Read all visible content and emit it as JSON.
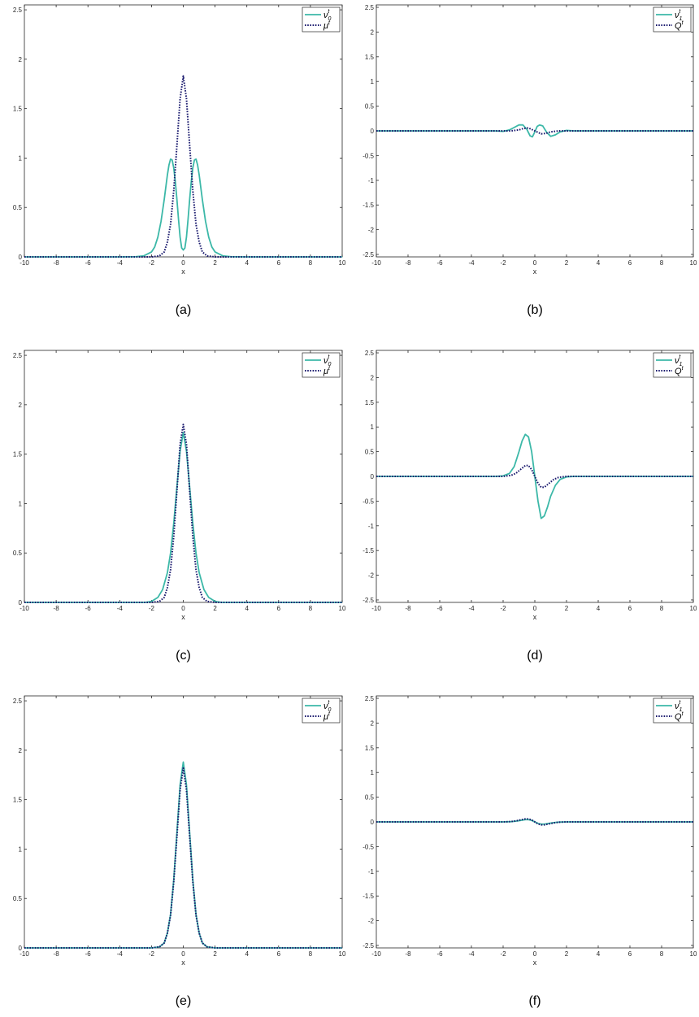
{
  "colors": {
    "teal": "#3cb8a8",
    "navy": "#1a1a6e",
    "axis": "#262626"
  },
  "chart_data": [
    {
      "type": "line",
      "caption": "(a)",
      "xlabel": "x",
      "xlim": [
        -10,
        10
      ],
      "ylim": [
        0,
        2.55
      ],
      "xticks": [
        "-10",
        "-8",
        "-6",
        "-4",
        "-2",
        "0",
        "2",
        "4",
        "6",
        "8",
        "10"
      ],
      "yticks": [
        "0",
        "0.5",
        "1",
        "1.5",
        "2",
        "2.5"
      ],
      "legend": "top-right",
      "grid": false,
      "series": [
        {
          "name": "ν0t",
          "style": "solid",
          "color": "#3cb8a8",
          "x": [
            -10,
            -4,
            -3,
            -2.5,
            -2,
            -1.8,
            -1.6,
            -1.4,
            -1.2,
            -1,
            -0.9,
            -0.8,
            -0.7,
            -0.6,
            -0.5,
            -0.4,
            -0.3,
            -0.2,
            -0.1,
            0,
            0.1,
            0.2,
            0.3,
            0.4,
            0.5,
            0.6,
            0.7,
            0.8,
            0.9,
            1,
            1.2,
            1.4,
            1.6,
            1.8,
            2,
            2.5,
            3,
            4,
            10
          ],
          "y": [
            0,
            0,
            0.002,
            0.01,
            0.05,
            0.1,
            0.2,
            0.36,
            0.58,
            0.83,
            0.93,
            0.99,
            0.98,
            0.9,
            0.76,
            0.58,
            0.38,
            0.2,
            0.09,
            0.07,
            0.09,
            0.2,
            0.38,
            0.58,
            0.76,
            0.9,
            0.98,
            0.99,
            0.93,
            0.83,
            0.58,
            0.36,
            0.2,
            0.1,
            0.05,
            0.01,
            0.002,
            0,
            0
          ]
        },
        {
          "name": "μt",
          "style": "dotted",
          "color": "#1a1a6e",
          "x": [
            -10,
            -2,
            -1.5,
            -1.2,
            -1,
            -0.8,
            -0.6,
            -0.4,
            -0.2,
            0,
            0.2,
            0.4,
            0.6,
            0.8,
            1,
            1.2,
            1.5,
            2,
            10
          ],
          "y": [
            0,
            0,
            0.01,
            0.05,
            0.15,
            0.33,
            0.67,
            1.13,
            1.6,
            1.83,
            1.6,
            1.13,
            0.67,
            0.33,
            0.15,
            0.05,
            0.01,
            0,
            0
          ]
        }
      ]
    },
    {
      "type": "line",
      "caption": "(b)",
      "xlabel": "x",
      "xlim": [
        -10,
        10
      ],
      "ylim": [
        -2.55,
        2.55
      ],
      "xticks": [
        "-10",
        "-8",
        "-6",
        "-4",
        "-2",
        "0",
        "2",
        "4",
        "6",
        "8",
        "10"
      ],
      "yticks": [
        "-2.5",
        "-2",
        "-1.5",
        "-1",
        "-0.5",
        "0",
        "0.5",
        "1",
        "1.5",
        "2",
        "2.5"
      ],
      "legend": "top-right",
      "grid": false,
      "series": [
        {
          "name": "ν1t",
          "style": "solid",
          "color": "#3cb8a8",
          "x": [
            -10,
            -2.5,
            -2,
            -1.6,
            -1.3,
            -1,
            -0.75,
            -0.5,
            -0.3,
            -0.15,
            0,
            0.15,
            0.3,
            0.5,
            0.75,
            1,
            1.3,
            1.6,
            2,
            2.5,
            10
          ],
          "y": [
            0,
            0,
            -0.01,
            0.02,
            0.07,
            0.12,
            0.12,
            0.03,
            -0.1,
            -0.12,
            -0.02,
            0.09,
            0.12,
            0.1,
            -0.03,
            -0.11,
            -0.08,
            -0.02,
            0.01,
            0,
            0
          ]
        },
        {
          "name": "Qt",
          "style": "dotted",
          "color": "#1a1a6e",
          "x": [
            -10,
            -1.5,
            -1,
            -0.7,
            -0.4,
            -0.2,
            0,
            0.2,
            0.4,
            0.7,
            1,
            1.5,
            10
          ],
          "y": [
            0,
            0,
            0.02,
            0.05,
            0.06,
            0.03,
            0,
            -0.03,
            -0.06,
            -0.05,
            -0.02,
            0,
            0
          ]
        }
      ]
    },
    {
      "type": "line",
      "caption": "(c)",
      "xlabel": "x",
      "xlim": [
        -10,
        10
      ],
      "ylim": [
        0,
        2.55
      ],
      "xticks": [
        "-10",
        "-8",
        "-6",
        "-4",
        "-2",
        "0",
        "2",
        "4",
        "6",
        "8",
        "10"
      ],
      "yticks": [
        "0",
        "0.5",
        "1",
        "1.5",
        "2",
        "2.5"
      ],
      "legend": "top-right",
      "grid": false,
      "series": [
        {
          "name": "ν0t",
          "style": "solid",
          "color": "#3cb8a8",
          "x": [
            -10,
            -2.4,
            -2,
            -1.6,
            -1.3,
            -1,
            -0.8,
            -0.6,
            -0.4,
            -0.2,
            0,
            0.2,
            0.4,
            0.6,
            0.8,
            1,
            1.3,
            1.6,
            2,
            2.4,
            10
          ],
          "y": [
            0,
            0,
            0.01,
            0.05,
            0.13,
            0.3,
            0.5,
            0.8,
            1.17,
            1.53,
            1.72,
            1.53,
            1.17,
            0.8,
            0.5,
            0.3,
            0.13,
            0.05,
            0.01,
            0,
            0
          ]
        },
        {
          "name": "μt",
          "style": "dotted",
          "color": "#1a1a6e",
          "x": [
            -10,
            -2,
            -1.5,
            -1.2,
            -1,
            -0.8,
            -0.6,
            -0.4,
            -0.2,
            0,
            0.2,
            0.4,
            0.6,
            0.8,
            1,
            1.2,
            1.5,
            2,
            10
          ],
          "y": [
            0,
            0,
            0.01,
            0.05,
            0.15,
            0.33,
            0.67,
            1.13,
            1.6,
            1.8,
            1.6,
            1.13,
            0.67,
            0.33,
            0.15,
            0.05,
            0.01,
            0,
            0
          ]
        }
      ]
    },
    {
      "type": "line",
      "caption": "(d)",
      "xlabel": "x",
      "xlim": [
        -10,
        10
      ],
      "ylim": [
        -2.55,
        2.55
      ],
      "xticks": [
        "-10",
        "-8",
        "-6",
        "-4",
        "-2",
        "0",
        "2",
        "4",
        "6",
        "8",
        "10"
      ],
      "yticks": [
        "-2.5",
        "-2",
        "-1.5",
        "-1",
        "-0.5",
        "0",
        "0.5",
        "1",
        "1.5",
        "2",
        "2.5"
      ],
      "legend": "top-right",
      "grid": false,
      "series": [
        {
          "name": "ν1t",
          "style": "solid",
          "color": "#3cb8a8",
          "x": [
            -10,
            -2.5,
            -2,
            -1.6,
            -1.3,
            -1,
            -0.8,
            -0.6,
            -0.4,
            -0.2,
            0,
            0.2,
            0.4,
            0.6,
            0.8,
            1,
            1.3,
            1.6,
            2,
            2.5,
            10
          ],
          "y": [
            0,
            0,
            0.01,
            0.06,
            0.2,
            0.5,
            0.72,
            0.85,
            0.8,
            0.5,
            0,
            -0.5,
            -0.85,
            -0.8,
            -0.62,
            -0.4,
            -0.18,
            -0.06,
            -0.01,
            0,
            0
          ]
        },
        {
          "name": "Qt",
          "style": "dotted",
          "color": "#1a1a6e",
          "x": [
            -10,
            -2,
            -1.5,
            -1.2,
            -0.9,
            -0.6,
            -0.4,
            -0.2,
            0,
            0.2,
            0.4,
            0.6,
            0.9,
            1.2,
            1.5,
            2,
            10
          ],
          "y": [
            0,
            0,
            0.02,
            0.06,
            0.14,
            0.22,
            0.22,
            0.14,
            0,
            -0.14,
            -0.22,
            -0.22,
            -0.14,
            -0.06,
            -0.02,
            0,
            0
          ]
        }
      ]
    },
    {
      "type": "line",
      "caption": "(e)",
      "xlabel": "x",
      "xlim": [
        -10,
        10
      ],
      "ylim": [
        0,
        2.55
      ],
      "xticks": [
        "-10",
        "-8",
        "-6",
        "-4",
        "-2",
        "0",
        "2",
        "4",
        "6",
        "8",
        "10"
      ],
      "yticks": [
        "0",
        "0.5",
        "1",
        "1.5",
        "2",
        "2.5"
      ],
      "legend": "top-right",
      "grid": false,
      "series": [
        {
          "name": "ν0t",
          "style": "solid",
          "color": "#3cb8a8",
          "x": [
            -10,
            -2,
            -1.5,
            -1.2,
            -1,
            -0.8,
            -0.6,
            -0.4,
            -0.2,
            0,
            0.2,
            0.4,
            0.6,
            0.8,
            1,
            1.2,
            1.5,
            2,
            10
          ],
          "y": [
            0,
            0,
            0.01,
            0.05,
            0.15,
            0.34,
            0.69,
            1.17,
            1.65,
            1.88,
            1.65,
            1.17,
            0.69,
            0.34,
            0.15,
            0.05,
            0.01,
            0,
            0
          ]
        },
        {
          "name": "μt",
          "style": "dotted",
          "color": "#1a1a6e",
          "x": [
            -10,
            -2,
            -1.5,
            -1.2,
            -1,
            -0.8,
            -0.6,
            -0.4,
            -0.2,
            0,
            0.2,
            0.4,
            0.6,
            0.8,
            1,
            1.2,
            1.5,
            2,
            10
          ],
          "y": [
            0,
            0,
            0.01,
            0.05,
            0.15,
            0.33,
            0.67,
            1.13,
            1.6,
            1.82,
            1.6,
            1.13,
            0.67,
            0.33,
            0.15,
            0.05,
            0.01,
            0,
            0
          ]
        }
      ]
    },
    {
      "type": "line",
      "caption": "(f)",
      "xlabel": "x",
      "xlim": [
        -10,
        10
      ],
      "ylim": [
        -2.55,
        2.55
      ],
      "xticks": [
        "-10",
        "-8",
        "-6",
        "-4",
        "-2",
        "0",
        "2",
        "4",
        "6",
        "8",
        "10"
      ],
      "yticks": [
        "-2.5",
        "-2",
        "-1.5",
        "-1",
        "-0.5",
        "0",
        "0.5",
        "1",
        "1.5",
        "2",
        "2.5"
      ],
      "legend": "top-right",
      "grid": false,
      "series": [
        {
          "name": "ν1t",
          "style": "solid",
          "color": "#3cb8a8",
          "x": [
            -10,
            -2,
            -1.5,
            -1.2,
            -0.9,
            -0.6,
            -0.4,
            -0.2,
            0,
            0.2,
            0.4,
            0.6,
            0.9,
            1.2,
            1.5,
            2,
            10
          ],
          "y": [
            0,
            0,
            0.005,
            0.015,
            0.03,
            0.045,
            0.045,
            0.03,
            0,
            -0.03,
            -0.045,
            -0.045,
            -0.03,
            -0.015,
            -0.005,
            0,
            0
          ]
        },
        {
          "name": "Qt",
          "style": "dotted",
          "color": "#1a1a6e",
          "x": [
            -10,
            -2,
            -1.5,
            -1.2,
            -0.9,
            -0.6,
            -0.4,
            -0.2,
            0,
            0.2,
            0.4,
            0.6,
            0.9,
            1.2,
            1.5,
            2,
            10
          ],
          "y": [
            0,
            0,
            0.006,
            0.02,
            0.04,
            0.06,
            0.06,
            0.04,
            0,
            -0.04,
            -0.06,
            -0.06,
            -0.04,
            -0.02,
            -0.006,
            0,
            0
          ]
        }
      ]
    }
  ]
}
